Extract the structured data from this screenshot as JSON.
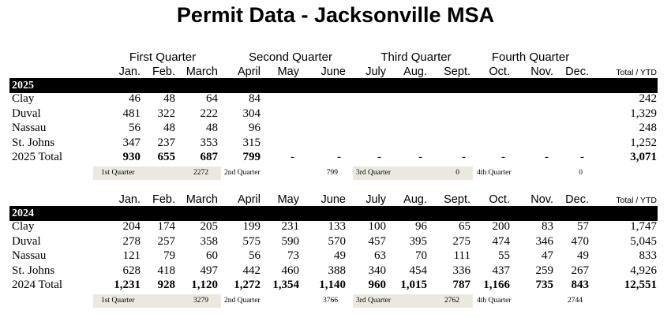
{
  "title": "Permit Data - Jacksonville MSA",
  "quarter_headers": [
    "First Quarter",
    "Second Quarter",
    "Third Quarter",
    "Fourth Quarter"
  ],
  "months": [
    "Jan.",
    "Feb.",
    "March",
    "April",
    "May",
    "June",
    "July",
    "Aug.",
    "Sept.",
    "Oct.",
    "Nov.",
    "Dec."
  ],
  "ytd_header": "Total / YTD",
  "sections": [
    {
      "year": "2025",
      "rows": [
        {
          "label": "Clay",
          "values": [
            "46",
            "48",
            "64",
            "84",
            "",
            "",
            "",
            "",
            "",
            "",
            "",
            ""
          ],
          "ytd": "242"
        },
        {
          "label": "Duval",
          "values": [
            "481",
            "322",
            "222",
            "304",
            "",
            "",
            "",
            "",
            "",
            "",
            "",
            ""
          ],
          "ytd": "1,329"
        },
        {
          "label": "Nassau",
          "values": [
            "56",
            "48",
            "48",
            "96",
            "",
            "",
            "",
            "",
            "",
            "",
            "",
            ""
          ],
          "ytd": "248"
        },
        {
          "label": "St. Johns",
          "values": [
            "347",
            "237",
            "353",
            "315",
            "",
            "",
            "",
            "",
            "",
            "",
            "",
            ""
          ],
          "ytd": "1,252"
        }
      ],
      "total": {
        "label": "2025 Total",
        "values": [
          "930",
          "655",
          "687",
          "799",
          "-",
          "-",
          "-",
          "-",
          "-",
          "-",
          "-",
          "-"
        ],
        "ytd": "3,071"
      },
      "quarters": [
        {
          "label": "1st Quarter",
          "value": "2272"
        },
        {
          "label": "2nd Quarter",
          "value": "799"
        },
        {
          "label": "3rd Quarter",
          "value": "0"
        },
        {
          "label": "4th Quarter",
          "value": "0"
        }
      ]
    },
    {
      "year": "2024",
      "rows": [
        {
          "label": "Clay",
          "values": [
            "204",
            "174",
            "205",
            "199",
            "231",
            "133",
            "100",
            "96",
            "65",
            "200",
            "83",
            "57"
          ],
          "ytd": "1,747"
        },
        {
          "label": "Duval",
          "values": [
            "278",
            "257",
            "358",
            "575",
            "590",
            "570",
            "457",
            "395",
            "275",
            "474",
            "346",
            "470"
          ],
          "ytd": "5,045"
        },
        {
          "label": "Nassau",
          "values": [
            "121",
            "79",
            "60",
            "56",
            "73",
            "49",
            "63",
            "70",
            "111",
            "55",
            "47",
            "49"
          ],
          "ytd": "833"
        },
        {
          "label": "St. Johns",
          "values": [
            "628",
            "418",
            "497",
            "442",
            "460",
            "388",
            "340",
            "454",
            "336",
            "437",
            "259",
            "267"
          ],
          "ytd": "4,926"
        }
      ],
      "total": {
        "label": "2024 Total",
        "values": [
          "1,231",
          "928",
          "1,120",
          "1,272",
          "1,354",
          "1,140",
          "960",
          "1,015",
          "787",
          "1,166",
          "735",
          "843"
        ],
        "ytd": "12,551"
      },
      "quarters": [
        {
          "label": "1st Quarter",
          "value": "3279"
        },
        {
          "label": "2nd Quarter",
          "value": "3766"
        },
        {
          "label": "3rd Quarter",
          "value": "2762"
        },
        {
          "label": "4th Quarter",
          "value": "2744"
        }
      ]
    }
  ]
}
